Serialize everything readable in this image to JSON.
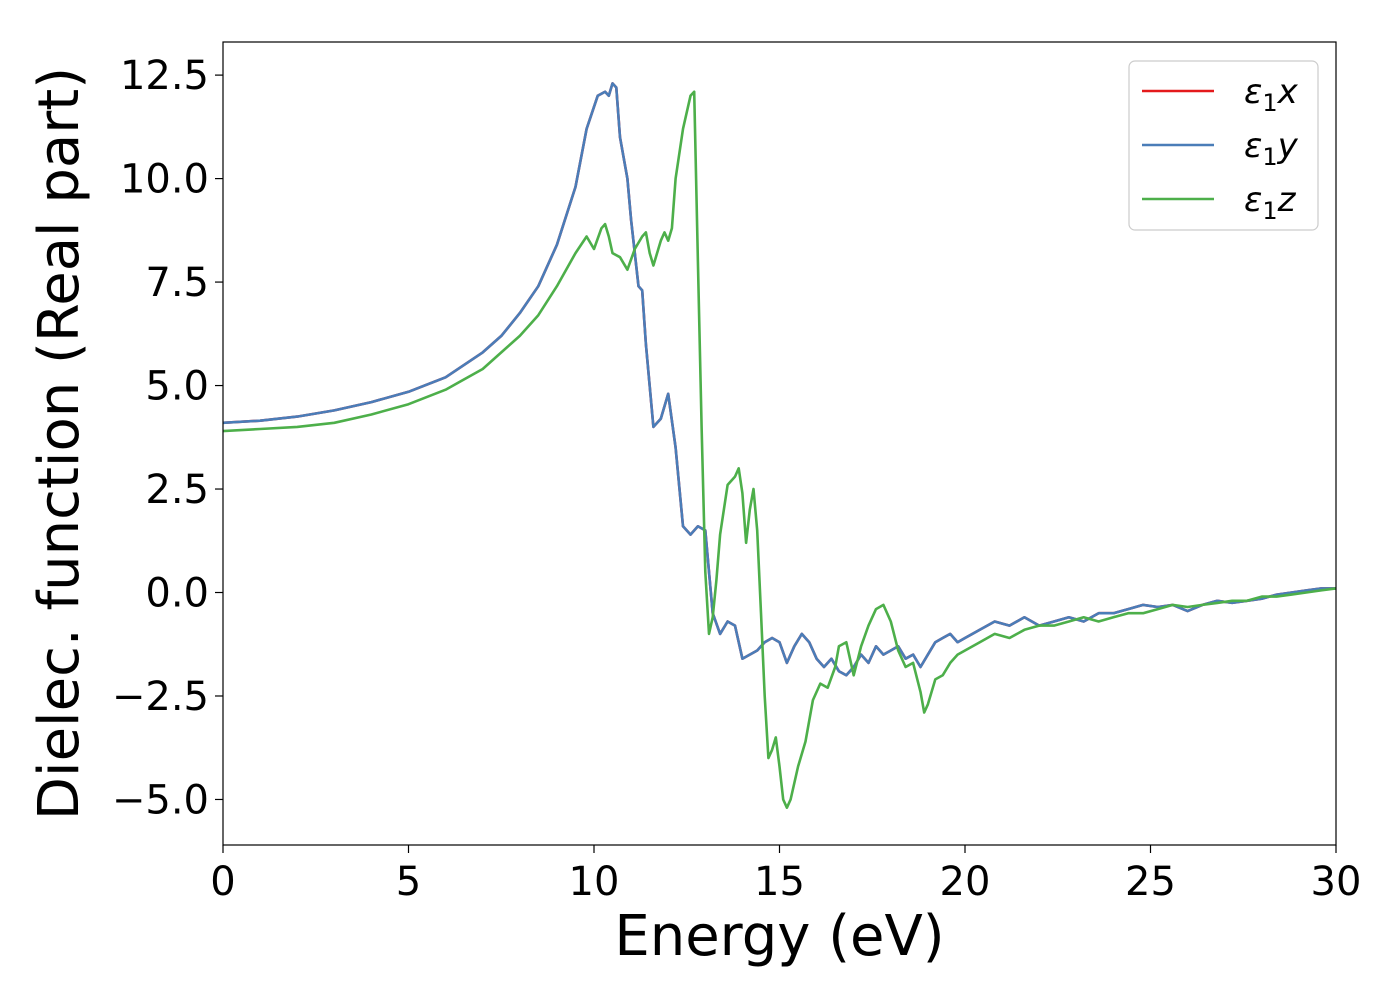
{
  "chart_data": {
    "type": "line",
    "title": "",
    "xlabel": "Energy (eV)",
    "ylabel": "Dielec. function (Real part)",
    "xlim": [
      0,
      30
    ],
    "ylim": [
      -6.1,
      13.3
    ],
    "xticks": [
      0,
      5,
      10,
      15,
      20,
      25,
      30
    ],
    "xtick_labels": [
      "0",
      "5",
      "10",
      "15",
      "20",
      "25",
      "30"
    ],
    "yticks": [
      -5.0,
      -2.5,
      0.0,
      2.5,
      5.0,
      7.5,
      10.0,
      12.5
    ],
    "ytick_labels": [
      "−5.0",
      "−2.5",
      "0.0",
      "2.5",
      "5.0",
      "7.5",
      "10.0",
      "12.5"
    ],
    "grid": false,
    "legend_position": "top-right",
    "series": [
      {
        "name": "ε1x",
        "legend_main": "ε",
        "legend_sub": "1",
        "legend_var": "x",
        "color": "#e41a1c",
        "x": [
          0,
          1,
          2,
          3,
          4,
          5,
          6,
          7,
          7.5,
          8,
          8.5,
          9,
          9.5,
          9.8,
          10.1,
          10.3,
          10.4,
          10.5,
          10.6,
          10.7,
          10.9,
          11.0,
          11.2,
          11.3,
          11.4,
          11.6,
          11.8,
          12.0,
          12.2,
          12.4,
          12.6,
          12.8,
          13.0,
          13.2,
          13.4,
          13.6,
          13.8,
          14.0,
          14.2,
          14.4,
          14.6,
          14.8,
          15.0,
          15.2,
          15.4,
          15.6,
          15.8,
          16.0,
          16.2,
          16.4,
          16.6,
          16.8,
          17.0,
          17.2,
          17.4,
          17.6,
          17.8,
          18.0,
          18.2,
          18.4,
          18.6,
          18.8,
          19.0,
          19.2,
          19.4,
          19.6,
          19.8,
          20.0,
          20.4,
          20.8,
          21.2,
          21.6,
          22.0,
          22.4,
          22.8,
          23.2,
          23.6,
          24.0,
          24.4,
          24.8,
          25.2,
          25.6,
          26.0,
          26.4,
          26.8,
          27.2,
          27.6,
          28.0,
          28.4,
          28.8,
          29.2,
          29.6,
          30.0
        ],
        "y": [
          4.1,
          4.15,
          4.25,
          4.4,
          4.6,
          4.85,
          5.2,
          5.8,
          6.2,
          6.75,
          7.4,
          8.4,
          9.8,
          11.2,
          12.0,
          12.1,
          12.0,
          12.3,
          12.2,
          11.0,
          10.0,
          9.0,
          7.4,
          7.3,
          6.0,
          4.0,
          4.2,
          4.8,
          3.5,
          1.6,
          1.4,
          1.6,
          1.5,
          -0.5,
          -1.0,
          -0.7,
          -0.8,
          -1.6,
          -1.5,
          -1.4,
          -1.2,
          -1.1,
          -1.2,
          -1.7,
          -1.3,
          -1.0,
          -1.2,
          -1.6,
          -1.8,
          -1.6,
          -1.9,
          -2.0,
          -1.8,
          -1.5,
          -1.7,
          -1.3,
          -1.5,
          -1.4,
          -1.3,
          -1.6,
          -1.5,
          -1.8,
          -1.5,
          -1.2,
          -1.1,
          -1.0,
          -1.2,
          -1.1,
          -0.9,
          -0.7,
          -0.8,
          -0.6,
          -0.8,
          -0.7,
          -0.6,
          -0.7,
          -0.5,
          -0.5,
          -0.4,
          -0.3,
          -0.35,
          -0.3,
          -0.45,
          -0.3,
          -0.2,
          -0.25,
          -0.2,
          -0.15,
          -0.05,
          0.0,
          0.05,
          0.1,
          0.1
        ]
      },
      {
        "name": "ε1y",
        "legend_main": "ε",
        "legend_sub": "1",
        "legend_var": "y",
        "color": "#4a7db8",
        "x": [
          0,
          1,
          2,
          3,
          4,
          5,
          6,
          7,
          7.5,
          8,
          8.5,
          9,
          9.5,
          9.8,
          10.1,
          10.3,
          10.4,
          10.5,
          10.6,
          10.7,
          10.9,
          11.0,
          11.2,
          11.3,
          11.4,
          11.6,
          11.8,
          12.0,
          12.2,
          12.4,
          12.6,
          12.8,
          13.0,
          13.2,
          13.4,
          13.6,
          13.8,
          14.0,
          14.2,
          14.4,
          14.6,
          14.8,
          15.0,
          15.2,
          15.4,
          15.6,
          15.8,
          16.0,
          16.2,
          16.4,
          16.6,
          16.8,
          17.0,
          17.2,
          17.4,
          17.6,
          17.8,
          18.0,
          18.2,
          18.4,
          18.6,
          18.8,
          19.0,
          19.2,
          19.4,
          19.6,
          19.8,
          20.0,
          20.4,
          20.8,
          21.2,
          21.6,
          22.0,
          22.4,
          22.8,
          23.2,
          23.6,
          24.0,
          24.4,
          24.8,
          25.2,
          25.6,
          26.0,
          26.4,
          26.8,
          27.2,
          27.6,
          28.0,
          28.4,
          28.8,
          29.2,
          29.6,
          30.0
        ],
        "y": [
          4.1,
          4.15,
          4.25,
          4.4,
          4.6,
          4.85,
          5.2,
          5.8,
          6.2,
          6.75,
          7.4,
          8.4,
          9.8,
          11.2,
          12.0,
          12.1,
          12.0,
          12.3,
          12.2,
          11.0,
          10.0,
          9.0,
          7.4,
          7.3,
          6.0,
          4.0,
          4.2,
          4.8,
          3.5,
          1.6,
          1.4,
          1.6,
          1.5,
          -0.5,
          -1.0,
          -0.7,
          -0.8,
          -1.6,
          -1.5,
          -1.4,
          -1.2,
          -1.1,
          -1.2,
          -1.7,
          -1.3,
          -1.0,
          -1.2,
          -1.6,
          -1.8,
          -1.6,
          -1.9,
          -2.0,
          -1.8,
          -1.5,
          -1.7,
          -1.3,
          -1.5,
          -1.4,
          -1.3,
          -1.6,
          -1.5,
          -1.8,
          -1.5,
          -1.2,
          -1.1,
          -1.0,
          -1.2,
          -1.1,
          -0.9,
          -0.7,
          -0.8,
          -0.6,
          -0.8,
          -0.7,
          -0.6,
          -0.7,
          -0.5,
          -0.5,
          -0.4,
          -0.3,
          -0.35,
          -0.3,
          -0.45,
          -0.3,
          -0.2,
          -0.25,
          -0.2,
          -0.15,
          -0.05,
          0.0,
          0.05,
          0.1,
          0.1
        ]
      },
      {
        "name": "ε1z",
        "legend_main": "ε",
        "legend_sub": "1",
        "legend_var": "z",
        "color": "#4daf4a",
        "x": [
          0,
          1,
          2,
          3,
          4,
          5,
          6,
          7,
          7.5,
          8,
          8.5,
          9,
          9.5,
          9.8,
          10.0,
          10.2,
          10.3,
          10.4,
          10.5,
          10.7,
          10.9,
          11.1,
          11.3,
          11.4,
          11.5,
          11.6,
          11.8,
          11.9,
          12.0,
          12.1,
          12.2,
          12.4,
          12.6,
          12.7,
          12.8,
          12.9,
          13.0,
          13.1,
          13.2,
          13.3,
          13.4,
          13.6,
          13.8,
          13.9,
          14.0,
          14.1,
          14.2,
          14.3,
          14.4,
          14.5,
          14.6,
          14.7,
          14.8,
          14.9,
          15.0,
          15.1,
          15.2,
          15.3,
          15.5,
          15.7,
          15.9,
          16.1,
          16.3,
          16.5,
          16.6,
          16.8,
          17.0,
          17.2,
          17.4,
          17.6,
          17.8,
          18.0,
          18.2,
          18.4,
          18.6,
          18.8,
          18.9,
          19.0,
          19.2,
          19.4,
          19.6,
          19.8,
          20.0,
          20.4,
          20.8,
          21.2,
          21.6,
          22.0,
          22.4,
          22.8,
          23.2,
          23.6,
          24.0,
          24.4,
          24.8,
          25.2,
          25.6,
          26.0,
          26.4,
          26.8,
          27.2,
          27.6,
          28.0,
          28.4,
          28.8,
          29.2,
          29.6,
          30.0
        ],
        "y": [
          3.9,
          3.95,
          4.0,
          4.1,
          4.3,
          4.55,
          4.9,
          5.4,
          5.8,
          6.2,
          6.7,
          7.4,
          8.2,
          8.6,
          8.3,
          8.8,
          8.9,
          8.6,
          8.2,
          8.1,
          7.8,
          8.3,
          8.6,
          8.7,
          8.2,
          7.9,
          8.5,
          8.7,
          8.5,
          8.8,
          10.0,
          11.2,
          12.0,
          12.1,
          8.0,
          4.0,
          0.5,
          -1.0,
          -0.6,
          0.3,
          1.4,
          2.6,
          2.8,
          3.0,
          2.4,
          1.2,
          2.0,
          2.5,
          1.5,
          -0.5,
          -2.5,
          -4.0,
          -3.8,
          -3.5,
          -4.2,
          -5.0,
          -5.2,
          -5.0,
          -4.2,
          -3.6,
          -2.6,
          -2.2,
          -2.3,
          -1.8,
          -1.3,
          -1.2,
          -2.0,
          -1.3,
          -0.8,
          -0.4,
          -0.3,
          -0.7,
          -1.4,
          -1.8,
          -1.7,
          -2.4,
          -2.9,
          -2.7,
          -2.1,
          -2.0,
          -1.7,
          -1.5,
          -1.4,
          -1.2,
          -1.0,
          -1.1,
          -0.9,
          -0.8,
          -0.8,
          -0.7,
          -0.6,
          -0.7,
          -0.6,
          -0.5,
          -0.5,
          -0.4,
          -0.3,
          -0.35,
          -0.3,
          -0.25,
          -0.2,
          -0.2,
          -0.1,
          -0.1,
          -0.05,
          0.0,
          0.05,
          0.1
        ]
      }
    ]
  }
}
